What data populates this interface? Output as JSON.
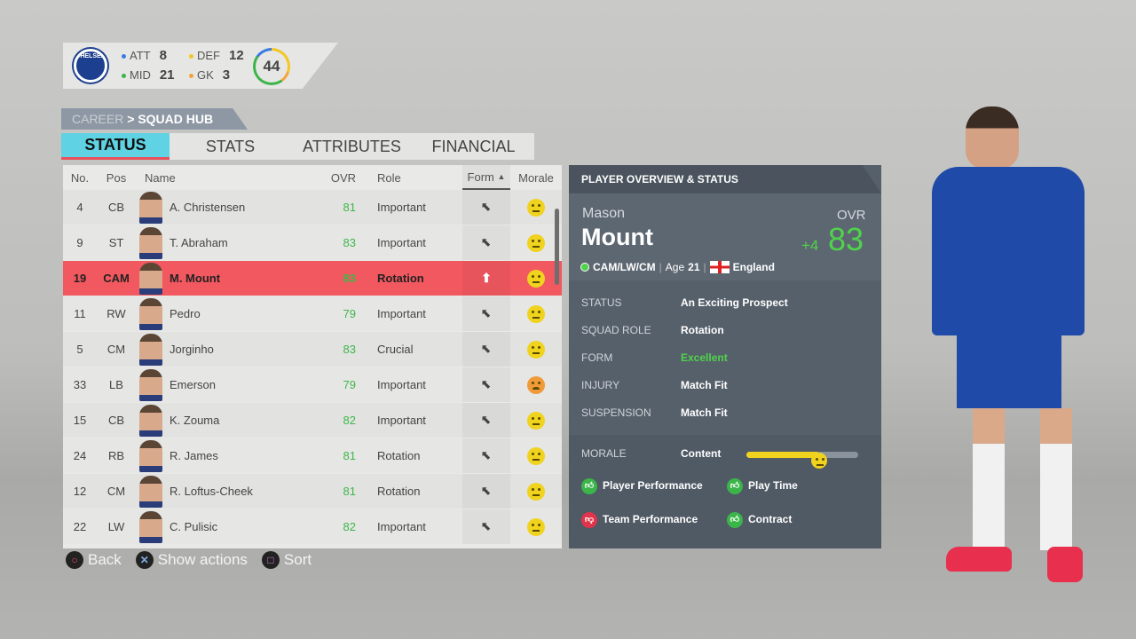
{
  "team": {
    "name": "Chelsea",
    "counts": [
      {
        "label": "ATT",
        "value": "8",
        "color": "#3a7be0"
      },
      {
        "label": "DEF",
        "value": "12",
        "color": "#f3c623"
      },
      {
        "label": "MID",
        "value": "21",
        "color": "#3bb54a"
      },
      {
        "label": "GK",
        "value": "3",
        "color": "#f5a33b"
      }
    ],
    "total": "44"
  },
  "breadcrumb": {
    "parent": "CAREER",
    "separator": ">",
    "current": "SQUAD HUB"
  },
  "tabs": [
    "STATUS",
    "STATS",
    "ATTRIBUTES",
    "FINANCIAL"
  ],
  "active_tab": "STATUS",
  "table": {
    "headers": {
      "no": "No.",
      "pos": "Pos",
      "name": "Name",
      "ovr": "OVR",
      "role": "Role",
      "form": "Form",
      "sort_indicator": "▲",
      "morale": "Morale"
    },
    "rows": [
      {
        "no": "4",
        "pos": "CB",
        "name": "A. Christensen",
        "ovr": "81",
        "role": "Important",
        "form": "down",
        "morale": "content"
      },
      {
        "no": "9",
        "pos": "ST",
        "name": "T. Abraham",
        "ovr": "83",
        "role": "Important",
        "form": "down",
        "morale": "content"
      },
      {
        "no": "19",
        "pos": "CAM",
        "name": "M. Mount",
        "ovr": "83",
        "role": "Rotation",
        "form": "up",
        "morale": "content",
        "selected": true
      },
      {
        "no": "11",
        "pos": "RW",
        "name": "Pedro",
        "ovr": "79",
        "role": "Important",
        "form": "down",
        "morale": "content"
      },
      {
        "no": "5",
        "pos": "CM",
        "name": "Jorginho",
        "ovr": "83",
        "role": "Crucial",
        "form": "down",
        "morale": "content"
      },
      {
        "no": "33",
        "pos": "LB",
        "name": "Emerson",
        "ovr": "79",
        "role": "Important",
        "form": "down",
        "morale": "unhappy"
      },
      {
        "no": "15",
        "pos": "CB",
        "name": "K. Zouma",
        "ovr": "82",
        "role": "Important",
        "form": "down",
        "morale": "content"
      },
      {
        "no": "24",
        "pos": "RB",
        "name": "R. James",
        "ovr": "81",
        "role": "Rotation",
        "form": "down",
        "morale": "content"
      },
      {
        "no": "12",
        "pos": "CM",
        "name": "R. Loftus-Cheek",
        "ovr": "81",
        "role": "Rotation",
        "form": "down",
        "morale": "content"
      },
      {
        "no": "22",
        "pos": "LW",
        "name": "C. Pulisic",
        "ovr": "82",
        "role": "Important",
        "form": "down",
        "morale": "content"
      }
    ]
  },
  "overview": {
    "title": "PLAYER OVERVIEW & STATUS",
    "first_name": "Mason",
    "last_name": "Mount",
    "ovr_label": "OVR",
    "ovr": "83",
    "ovr_change": "+4",
    "positions": "CAM/LW/CM",
    "age_label": "Age",
    "age": "21",
    "nation": "England",
    "status": [
      {
        "label": "STATUS",
        "value": "An Exciting Prospect"
      },
      {
        "label": "SQUAD ROLE",
        "value": "Rotation"
      },
      {
        "label": "FORM",
        "value": "Excellent",
        "color": "#4fd34a"
      },
      {
        "label": "INJURY",
        "value": "Match Fit"
      },
      {
        "label": "SUSPENSION",
        "value": "Match Fit"
      }
    ],
    "morale_label": "MORALE",
    "morale_value": "Content",
    "morale_level": 0.65,
    "reasons": [
      {
        "label": "Player Performance",
        "positive": true
      },
      {
        "label": "Play Time",
        "positive": true
      },
      {
        "label": "Team Performance",
        "positive": false
      },
      {
        "label": "Contract",
        "positive": true
      }
    ]
  },
  "controls": [
    {
      "icon": "circle-button-icon",
      "label": "Back",
      "color": "#e8506a"
    },
    {
      "icon": "cross-button-icon",
      "label": "Show actions",
      "color": "#7fb0e8"
    },
    {
      "icon": "square-button-icon",
      "label": "Sort",
      "color": "#d07ad0"
    }
  ]
}
